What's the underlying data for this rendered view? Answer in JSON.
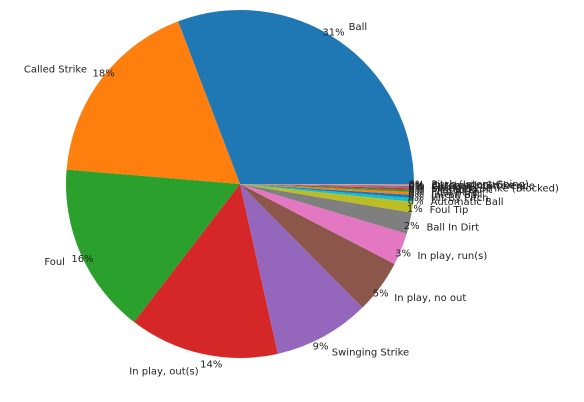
{
  "chart_data": {
    "type": "pie",
    "title": "",
    "slices": [
      {
        "label": "Ball",
        "value": 31,
        "pct_label": "31%",
        "color": "#1f77b4"
      },
      {
        "label": "Called Strike",
        "value": 18,
        "pct_label": "18%",
        "color": "#ff7f0e"
      },
      {
        "label": "Foul",
        "value": 16,
        "pct_label": "16%",
        "color": "#2ca02c"
      },
      {
        "label": "In play, out(s)",
        "value": 14,
        "pct_label": "14%",
        "color": "#d62728"
      },
      {
        "label": "Swinging Strike",
        "value": 9,
        "pct_label": "9%",
        "color": "#9467bd"
      },
      {
        "label": "In play, no out",
        "value": 5,
        "pct_label": "5%",
        "color": "#8c564b"
      },
      {
        "label": "In play, run(s)",
        "value": 3,
        "pct_label": "3%",
        "color": "#e377c2"
      },
      {
        "label": "Ball In Dirt",
        "value": 2,
        "pct_label": "2%",
        "color": "#7f7f7f"
      },
      {
        "label": "Foul Tip",
        "value": 1,
        "pct_label": "1%",
        "color": "#bcbd22"
      },
      {
        "label": "Automatic Ball",
        "value": 0.35,
        "pct_label": "0%",
        "color": "#17becf"
      },
      {
        "label": "Hit By Pitch",
        "value": 0.3,
        "pct_label": "0%",
        "color": "#1f77b4"
      },
      {
        "label": "Intent Ball",
        "value": 0.25,
        "pct_label": "0%",
        "color": "#ff7f0e"
      },
      {
        "label": "Foul Bunt",
        "value": 0.2,
        "pct_label": "0%",
        "color": "#2ca02c"
      },
      {
        "label": "Missed Bunt",
        "value": 0.15,
        "pct_label": "0%",
        "color": "#d62728"
      },
      {
        "label": "Swinging Strike (Blocked)",
        "value": 0.12,
        "pct_label": "0%",
        "color": "#9467bd"
      },
      {
        "label": "Pitchout",
        "value": 0.1,
        "pct_label": "0%",
        "color": "#8c564b"
      },
      {
        "label": "Catcher Interference",
        "value": 0.08,
        "pct_label": "0%",
        "color": "#e377c2"
      },
      {
        "label": "Automatic Strike",
        "value": 0.06,
        "pct_label": "0%",
        "color": "#7f7f7f"
      },
      {
        "label": "Pitch (Intent Going)",
        "value": 0.04,
        "pct_label": "0%",
        "color": "#bcbd22"
      }
    ]
  }
}
